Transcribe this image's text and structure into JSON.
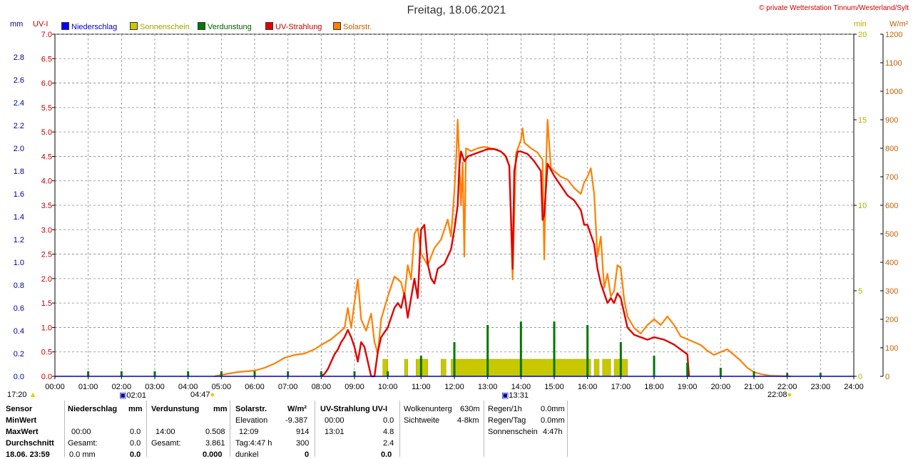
{
  "header": {
    "title": "Freitag, 18.06.2021",
    "copyright": "© private Wetterstation Tinnum/Westerland/Sylt"
  },
  "units": {
    "left1": "mm",
    "left2": "UV-I",
    "right1": "min",
    "right2": "W/m²"
  },
  "legend": [
    {
      "label": "Niederschlag",
      "color": "#0000ff"
    },
    {
      "label": "Sonnenschein",
      "color": "#c8c800"
    },
    {
      "label": "Verdunstung",
      "color": "#007800"
    },
    {
      "label": "UV-Strahlung",
      "color": "#e00000"
    },
    {
      "label": "Solarstr.",
      "color": "#ff8000"
    }
  ],
  "colors": {
    "uv": "#e00000",
    "solar": "#ff8000",
    "sun": "#c8c800",
    "evap": "#007800",
    "mm_axis": "#0000a0",
    "uv_axis": "#c00000",
    "min_axis": "#b0b000",
    "wm2_axis": "#c06000"
  },
  "chart_data": {
    "type": "line",
    "x_range_hours": [
      0,
      24
    ],
    "x_ticks": [
      "00:00",
      "01:00",
      "02:00",
      "03:00",
      "04:00",
      "05:00",
      "06:00",
      "07:00",
      "08:00",
      "09:00",
      "10:00",
      "11:00",
      "12:00",
      "13:00",
      "14:00",
      "15:00",
      "16:00",
      "17:00",
      "18:00",
      "19:00",
      "20:00",
      "21:00",
      "22:00",
      "23:00",
      "24:00"
    ],
    "axes": {
      "mm": {
        "range": [
          0,
          3.0
        ],
        "ticks": [
          "0.0",
          "0.2",
          "0.4",
          "0.6",
          "0.8",
          "1.0",
          "1.2",
          "1.4",
          "1.6",
          "1.8",
          "2.0",
          "2.2",
          "2.4",
          "2.6",
          "2.8"
        ]
      },
      "uv": {
        "range": [
          0,
          7.0
        ],
        "ticks": [
          "0.0",
          "0.5",
          "1.0",
          "1.5",
          "2.0",
          "2.5",
          "3.0",
          "3.5",
          "4.0",
          "4.5",
          "5.0",
          "5.5",
          "6.0",
          "6.5",
          "7.0"
        ]
      },
      "min": {
        "range": [
          0,
          20
        ],
        "ticks": [
          "0",
          "5",
          "10",
          "15",
          "20"
        ]
      },
      "wm2": {
        "range": [
          0,
          1200
        ],
        "ticks": [
          "0",
          "100",
          "200",
          "300",
          "400",
          "500",
          "600",
          "700",
          "800",
          "900",
          "1000",
          "1100",
          "1200"
        ]
      }
    },
    "markers": {
      "sunset_prev": "17:20",
      "uv_start": "02:01",
      "sunrise": "04:47",
      "uv_max": "13:31",
      "sunset": "22:08"
    },
    "series": [
      {
        "name": "Solarstr.",
        "axis": "wm2",
        "points": [
          [
            4.8,
            0
          ],
          [
            5.0,
            5
          ],
          [
            5.5,
            15
          ],
          [
            6.0,
            20
          ],
          [
            6.3,
            30
          ],
          [
            6.6,
            45
          ],
          [
            6.9,
            65
          ],
          [
            7.2,
            75
          ],
          [
            7.5,
            80
          ],
          [
            7.8,
            95
          ],
          [
            8.0,
            110
          ],
          [
            8.3,
            130
          ],
          [
            8.5,
            150
          ],
          [
            8.7,
            170
          ],
          [
            8.8,
            240
          ],
          [
            8.9,
            170
          ],
          [
            9.0,
            260
          ],
          [
            9.1,
            340
          ],
          [
            9.2,
            200
          ],
          [
            9.35,
            160
          ],
          [
            9.5,
            220
          ],
          [
            9.6,
            120
          ],
          [
            9.7,
            80
          ],
          [
            9.8,
            200
          ],
          [
            9.9,
            240
          ],
          [
            10.0,
            280
          ],
          [
            10.2,
            350
          ],
          [
            10.4,
            330
          ],
          [
            10.5,
            280
          ],
          [
            10.6,
            390
          ],
          [
            10.7,
            340
          ],
          [
            10.8,
            500
          ],
          [
            10.9,
            520
          ],
          [
            11.0,
            430
          ],
          [
            11.2,
            390
          ],
          [
            11.4,
            450
          ],
          [
            11.6,
            480
          ],
          [
            11.8,
            550
          ],
          [
            11.9,
            490
          ],
          [
            12.0,
            650
          ],
          [
            12.05,
            750
          ],
          [
            12.1,
            900
          ],
          [
            12.2,
            600
          ],
          [
            12.25,
            750
          ],
          [
            12.3,
            420
          ],
          [
            12.35,
            800
          ],
          [
            12.5,
            790
          ],
          [
            12.7,
            800
          ],
          [
            12.9,
            805
          ],
          [
            13.1,
            800
          ],
          [
            13.3,
            795
          ],
          [
            13.5,
            780
          ],
          [
            13.65,
            740
          ],
          [
            13.75,
            340
          ],
          [
            13.85,
            780
          ],
          [
            14.0,
            830
          ],
          [
            14.05,
            870
          ],
          [
            14.1,
            820
          ],
          [
            14.3,
            800
          ],
          [
            14.5,
            785
          ],
          [
            14.65,
            760
          ],
          [
            14.7,
            410
          ],
          [
            14.75,
            720
          ],
          [
            14.8,
            900
          ],
          [
            14.9,
            730
          ],
          [
            15.0,
            720
          ],
          [
            15.2,
            700
          ],
          [
            15.4,
            690
          ],
          [
            15.6,
            660
          ],
          [
            15.8,
            640
          ],
          [
            15.9,
            680
          ],
          [
            16.0,
            700
          ],
          [
            16.1,
            730
          ],
          [
            16.2,
            640
          ],
          [
            16.3,
            420
          ],
          [
            16.4,
            490
          ],
          [
            16.5,
            310
          ],
          [
            16.6,
            360
          ],
          [
            16.7,
            280
          ],
          [
            16.8,
            300
          ],
          [
            16.9,
            390
          ],
          [
            17.0,
            380
          ],
          [
            17.1,
            270
          ],
          [
            17.2,
            210
          ],
          [
            17.4,
            170
          ],
          [
            17.6,
            150
          ],
          [
            17.8,
            180
          ],
          [
            18.0,
            200
          ],
          [
            18.2,
            180
          ],
          [
            18.4,
            210
          ],
          [
            18.6,
            180
          ],
          [
            18.8,
            140
          ],
          [
            19.0,
            130
          ],
          [
            19.2,
            120
          ],
          [
            19.4,
            110
          ],
          [
            19.6,
            90
          ],
          [
            19.8,
            75
          ],
          [
            20.0,
            85
          ],
          [
            20.2,
            95
          ],
          [
            20.4,
            75
          ],
          [
            20.6,
            55
          ],
          [
            20.8,
            30
          ],
          [
            21.0,
            15
          ],
          [
            21.2,
            8
          ],
          [
            21.5,
            2
          ],
          [
            22.1,
            0
          ]
        ]
      },
      {
        "name": "UV-Strahlung",
        "axis": "uv",
        "points": [
          [
            8.0,
            0
          ],
          [
            8.1,
            0.05
          ],
          [
            8.2,
            0.15
          ],
          [
            8.3,
            0.3
          ],
          [
            8.4,
            0.45
          ],
          [
            8.5,
            0.55
          ],
          [
            8.6,
            0.7
          ],
          [
            8.7,
            0.8
          ],
          [
            8.8,
            0.95
          ],
          [
            8.9,
            0.8
          ],
          [
            9.0,
            0.6
          ],
          [
            9.1,
            0.3
          ],
          [
            9.2,
            0.7
          ],
          [
            9.3,
            0.6
          ],
          [
            9.4,
            0.3
          ],
          [
            9.5,
            0.0
          ],
          [
            9.6,
            0.0
          ],
          [
            9.7,
            0.5
          ],
          [
            9.8,
            0.8
          ],
          [
            9.9,
            0.9
          ],
          [
            10.0,
            1.0
          ],
          [
            10.1,
            1.2
          ],
          [
            10.2,
            1.4
          ],
          [
            10.3,
            1.5
          ],
          [
            10.4,
            1.4
          ],
          [
            10.5,
            1.7
          ],
          [
            10.6,
            1.2
          ],
          [
            10.7,
            1.6
          ],
          [
            10.8,
            2.0
          ],
          [
            10.9,
            1.6
          ],
          [
            11.0,
            3.0
          ],
          [
            11.1,
            3.1
          ],
          [
            11.2,
            2.3
          ],
          [
            11.3,
            2.0
          ],
          [
            11.4,
            1.9
          ],
          [
            11.5,
            2.2
          ],
          [
            11.7,
            2.3
          ],
          [
            11.9,
            2.6
          ],
          [
            12.0,
            3.0
          ],
          [
            12.1,
            3.5
          ],
          [
            12.15,
            4.3
          ],
          [
            12.2,
            4.6
          ],
          [
            12.3,
            4.4
          ],
          [
            12.4,
            4.5
          ],
          [
            12.6,
            4.55
          ],
          [
            12.8,
            4.6
          ],
          [
            13.0,
            4.65
          ],
          [
            13.2,
            4.65
          ],
          [
            13.4,
            4.6
          ],
          [
            13.55,
            4.5
          ],
          [
            13.65,
            4.3
          ],
          [
            13.7,
            3.3
          ],
          [
            13.75,
            2.2
          ],
          [
            13.8,
            4.2
          ],
          [
            13.9,
            4.6
          ],
          [
            14.0,
            4.6
          ],
          [
            14.2,
            4.55
          ],
          [
            14.4,
            4.4
          ],
          [
            14.6,
            4.2
          ],
          [
            14.65,
            3.2
          ],
          [
            14.7,
            3.3
          ],
          [
            14.8,
            4.35
          ],
          [
            15.0,
            4.1
          ],
          [
            15.2,
            3.9
          ],
          [
            15.4,
            3.7
          ],
          [
            15.6,
            3.6
          ],
          [
            15.8,
            3.4
          ],
          [
            15.9,
            3.1
          ],
          [
            16.0,
            3.1
          ],
          [
            16.1,
            2.9
          ],
          [
            16.2,
            2.7
          ],
          [
            16.3,
            2.2
          ],
          [
            16.4,
            1.9
          ],
          [
            16.5,
            1.7
          ],
          [
            16.6,
            1.5
          ],
          [
            16.7,
            1.6
          ],
          [
            16.8,
            1.5
          ],
          [
            16.9,
            1.7
          ],
          [
            17.0,
            1.6
          ],
          [
            17.1,
            1.3
          ],
          [
            17.2,
            1.0
          ],
          [
            17.4,
            0.85
          ],
          [
            17.6,
            0.8
          ],
          [
            17.8,
            0.75
          ],
          [
            18.0,
            0.8
          ],
          [
            18.3,
            0.75
          ],
          [
            18.6,
            0.65
          ],
          [
            18.8,
            0.55
          ],
          [
            19.0,
            0.45
          ],
          [
            19.05,
            0
          ]
        ]
      },
      {
        "name": "Sonnenschein",
        "axis": "min",
        "type": "bar",
        "intervals": [
          [
            9.85,
            10.0
          ],
          [
            10.5,
            10.6
          ],
          [
            10.85,
            11.2
          ],
          [
            11.6,
            11.75
          ],
          [
            11.9,
            12.0
          ],
          [
            12.0,
            16.1
          ],
          [
            16.2,
            16.35
          ],
          [
            16.45,
            16.7
          ],
          [
            16.8,
            17.2
          ]
        ],
        "value": 1
      },
      {
        "name": "Verdunstung",
        "axis": "min",
        "type": "bar",
        "points": [
          [
            1.0,
            0.3
          ],
          [
            2.0,
            0.3
          ],
          [
            3.0,
            0.3
          ],
          [
            4.0,
            0.3
          ],
          [
            5.0,
            0.3
          ],
          [
            6.0,
            0.3
          ],
          [
            7.0,
            0.3
          ],
          [
            8.0,
            0.3
          ],
          [
            9.0,
            0.3
          ],
          [
            10.0,
            0.3
          ],
          [
            11.0,
            1.2
          ],
          [
            12.0,
            2.0
          ],
          [
            13.0,
            3.0
          ],
          [
            14.0,
            3.2
          ],
          [
            15.0,
            3.2
          ],
          [
            16.0,
            3.0
          ],
          [
            17.0,
            2.0
          ],
          [
            18.0,
            1.2
          ],
          [
            19.0,
            0.8
          ],
          [
            20.0,
            0.5
          ],
          [
            21.0,
            0.3
          ],
          [
            22.0,
            0.2
          ],
          [
            23.0,
            0.2
          ]
        ]
      }
    ]
  },
  "table": {
    "row_labels": [
      "Sensor",
      "MinWert",
      "MaxWert",
      "Durchschnitt",
      "18.06. 23:59"
    ],
    "niederschlag": {
      "header": "Niederschlag",
      "unit": "mm",
      "max_time": "00:00",
      "max_val": "0.0",
      "gesamt_label": "Gesamt:",
      "gesamt_val": "0.0",
      "last_l": "0.0 mm",
      "last_r": "0.0"
    },
    "verdunstung": {
      "header": "Verdunstung",
      "unit": "mm",
      "max_time": "14:00",
      "max_val": "0.508",
      "gesamt_label": "Gesamt:",
      "gesamt_val": "3.861",
      "last_r": "0.000"
    },
    "solar": {
      "header": "Solarstr.",
      "unit": "W/m²",
      "elev_label": "Elevation",
      "elev_val": "-9.387",
      "max_time": "12:09",
      "max_val": "914",
      "tag_label": "Tag:4:47 h",
      "tag_val": "300",
      "dunkel_label": "dunkel",
      "dunkel_val": "0"
    },
    "uv": {
      "header": "UV-Strahlung UV-I",
      "min_time": "00:00",
      "min_val": "0.0",
      "max_time": "13:01",
      "max_val": "4.8",
      "avg_val": "2.4",
      "last_val": "0.0"
    },
    "wolken": {
      "l1": "Wolkenunterg",
      "v1": "630m",
      "l2": "Sichtweite",
      "v2": "4-8km"
    },
    "regen": {
      "l1": "Regen/1h",
      "v1": "0.0mm",
      "l2": "Regen/Tag",
      "v2": "0.0mm",
      "l3": "Sonnenschein",
      "v3": "4:47h"
    }
  }
}
